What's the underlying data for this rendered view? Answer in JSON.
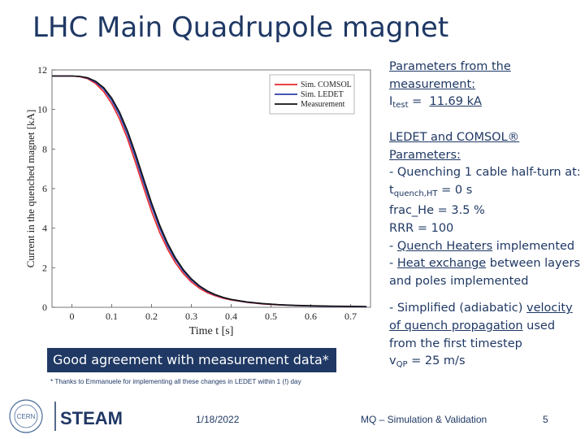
{
  "slide_title": "LHC Main Quadrupole magnet",
  "params": {
    "heading": "Parameters from the measurement:",
    "itest_symbol": "I",
    "itest_sub": "test",
    "itest_eq": " =  ",
    "itest_value": "11.69 kA"
  },
  "model": {
    "heading": "LEDET and COMSOL® Parameters:",
    "line1": "- Quenching 1 cable half-turn at:",
    "tq_symbol": "t",
    "tq_sub": "quench,HT",
    "tq_rest": " = 0 s",
    "frac_he": "frac_He = 3.5 %",
    "rrr": "RRR = 100",
    "qh_prefix": "- ",
    "qh_link": "Quench Heaters",
    "qh_rest": " implemented",
    "he_prefix": "- ",
    "he_link": "Heat exchange",
    "he_rest": " between layers and poles implemented",
    "ad_prefix": "- Simplified (adiabatic) ",
    "ad_link": "velocity of quench propagation",
    "ad_rest": " used from the first timestep",
    "vqp_symbol": "v",
    "vqp_sub": "QP",
    "vqp_rest": " = 25 m/s"
  },
  "callout": "Good agreement with measurement data*",
  "footnote": "* Thanks to Emmanuele for implementing all these changes in LEDET within 1 (!) day",
  "footer": {
    "date": "1/18/2022",
    "center": "MQ – Simulation & Validation",
    "page": "5"
  },
  "logos": {
    "cern": "CERN",
    "steam": "STEAM"
  },
  "chart_data": {
    "type": "line",
    "xlabel": "Time t [s]",
    "ylabel": "Current in the quenched magnet [kA]",
    "xlim": [
      -0.05,
      0.75
    ],
    "ylim": [
      0,
      12
    ],
    "xticks": [
      "0",
      "0.1",
      "0.2",
      "0.3",
      "0.4",
      "0.5",
      "0.6",
      "0.7"
    ],
    "yticks": [
      "0",
      "2",
      "4",
      "6",
      "8",
      "10",
      "12"
    ],
    "grid": false,
    "legend_position": "top-right",
    "series": [
      {
        "name": "Sim. COMSOL",
        "color": "#e8262b",
        "x": [
          -0.05,
          0.0,
          0.02,
          0.04,
          0.06,
          0.08,
          0.1,
          0.12,
          0.14,
          0.16,
          0.18,
          0.2,
          0.22,
          0.24,
          0.26,
          0.28,
          0.3,
          0.32,
          0.34,
          0.36,
          0.38,
          0.4,
          0.44,
          0.48,
          0.52,
          0.56,
          0.6,
          0.65,
          0.7,
          0.74
        ],
        "y": [
          11.69,
          11.69,
          11.66,
          11.55,
          11.3,
          10.9,
          10.3,
          9.5,
          8.5,
          7.3,
          6.05,
          4.85,
          3.8,
          2.95,
          2.25,
          1.7,
          1.28,
          0.97,
          0.74,
          0.58,
          0.46,
          0.37,
          0.25,
          0.17,
          0.12,
          0.09,
          0.07,
          0.05,
          0.04,
          0.03
        ]
      },
      {
        "name": "Sim. LEDET",
        "color": "#2b3ea8",
        "x": [
          -0.05,
          0.0,
          0.02,
          0.04,
          0.06,
          0.08,
          0.1,
          0.12,
          0.14,
          0.16,
          0.18,
          0.2,
          0.22,
          0.24,
          0.26,
          0.28,
          0.3,
          0.32,
          0.34,
          0.36,
          0.38,
          0.4,
          0.44,
          0.48,
          0.52,
          0.56,
          0.6,
          0.65,
          0.7,
          0.74
        ],
        "y": [
          11.69,
          11.69,
          11.67,
          11.58,
          11.38,
          11.02,
          10.46,
          9.7,
          8.72,
          7.55,
          6.3,
          5.1,
          4.02,
          3.12,
          2.4,
          1.82,
          1.38,
          1.05,
          0.8,
          0.62,
          0.49,
          0.39,
          0.26,
          0.18,
          0.13,
          0.09,
          0.07,
          0.05,
          0.04,
          0.03
        ]
      },
      {
        "name": "Measurement",
        "color": "#111111",
        "x": [
          -0.05,
          0.0,
          0.02,
          0.04,
          0.06,
          0.08,
          0.1,
          0.12,
          0.14,
          0.16,
          0.18,
          0.2,
          0.22,
          0.24,
          0.26,
          0.28,
          0.3,
          0.32,
          0.34,
          0.36,
          0.38,
          0.4,
          0.44,
          0.48,
          0.52,
          0.56,
          0.6,
          0.65,
          0.7,
          0.74
        ],
        "y": [
          11.69,
          11.69,
          11.67,
          11.6,
          11.42,
          11.1,
          10.58,
          9.85,
          8.9,
          7.75,
          6.5,
          5.28,
          4.18,
          3.25,
          2.5,
          1.9,
          1.44,
          1.09,
          0.83,
          0.64,
          0.5,
          0.4,
          0.27,
          0.19,
          0.13,
          0.1,
          0.08,
          0.06,
          0.05,
          0.04
        ]
      }
    ]
  }
}
